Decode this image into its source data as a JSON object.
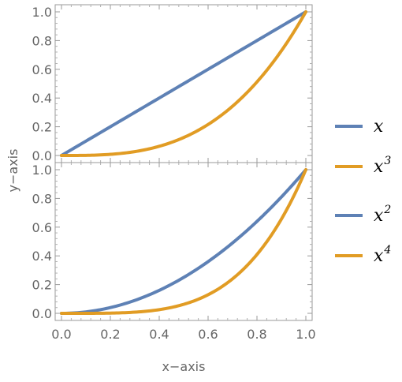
{
  "chart_data": {
    "type": "line",
    "xlabel": "x−axis",
    "ylabel": "y−axis",
    "xlim": [
      0,
      1
    ],
    "ylim": [
      0,
      1
    ],
    "x_ticks": [
      "0.0",
      "0.2",
      "0.4",
      "0.6",
      "0.8",
      "1.0"
    ],
    "y_ticks": [
      "0.0",
      "0.2",
      "0.4",
      "0.6",
      "0.8",
      "1.0"
    ],
    "grid": false,
    "legend_position": "right",
    "colors": {
      "blue": "#5E81B5",
      "orange": "#E19C24"
    },
    "panels": [
      {
        "position": "top",
        "series": [
          {
            "name": "x",
            "base": "x",
            "exponent": "",
            "power": 1,
            "color": "#5E81B5"
          },
          {
            "name": "x^3",
            "base": "x",
            "exponent": "3",
            "power": 3,
            "color": "#E19C24"
          }
        ]
      },
      {
        "position": "bottom",
        "series": [
          {
            "name": "x^2",
            "base": "x",
            "exponent": "2",
            "power": 2,
            "color": "#5E81B5"
          },
          {
            "name": "x^4",
            "base": "x",
            "exponent": "4",
            "power": 4,
            "color": "#E19C24"
          }
        ]
      }
    ]
  }
}
